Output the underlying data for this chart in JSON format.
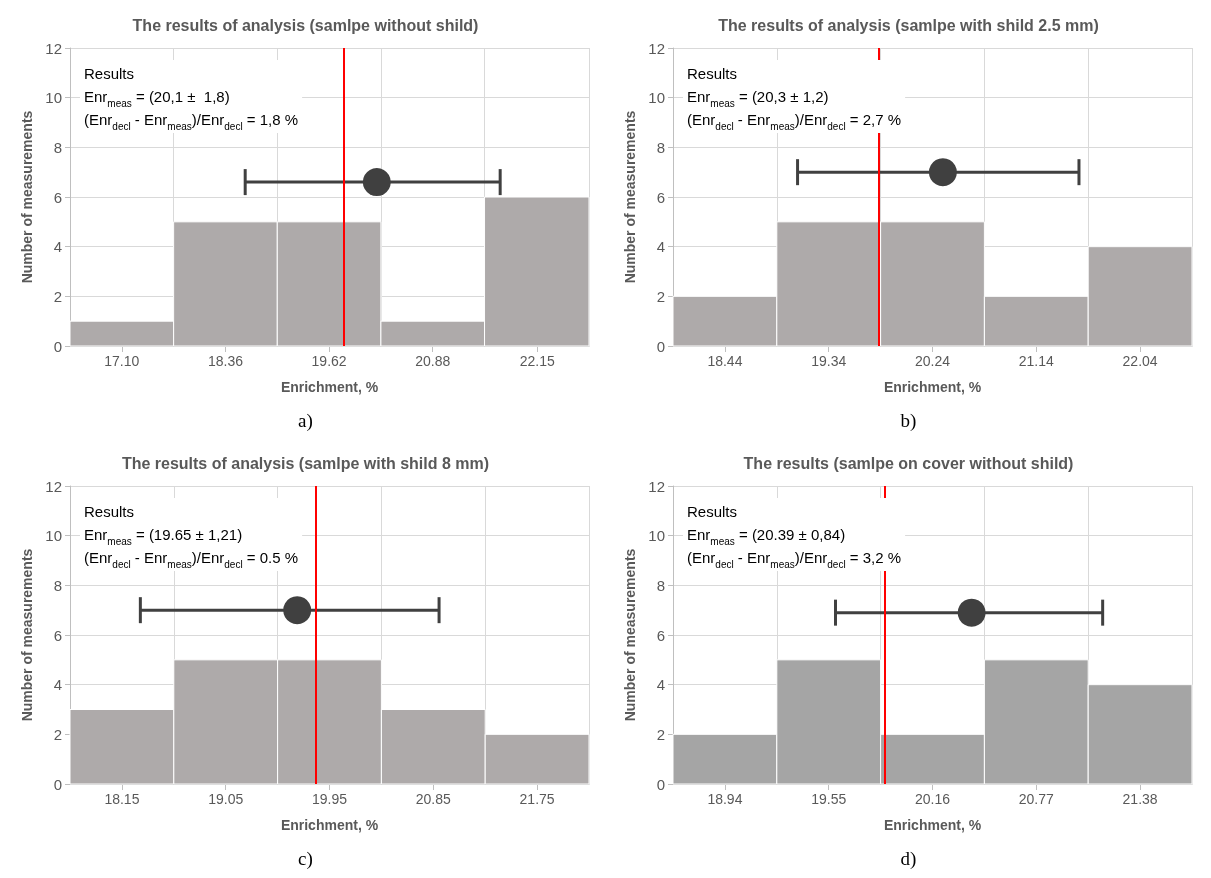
{
  "chart_data": [
    {
      "type": "histogram",
      "title": "The results of analysis (samlpe without shild)",
      "xlabel": "Enrichment, %",
      "ylabel": "Number of measurements",
      "xlim": [
        16.47,
        22.78
      ],
      "xticks": [
        {
          "value": 17.1,
          "label": "17.10"
        },
        18.36,
        19.62,
        20.88,
        22.15
      ],
      "ylim": [
        0,
        12
      ],
      "yticks": [
        0,
        2,
        4,
        6,
        8,
        10,
        12
      ],
      "grid": true,
      "series": [
        {
          "type": "histogram",
          "color": "#aeaaaa",
          "bins": [
            16.47,
            17.73,
            18.99,
            20.25,
            21.51,
            22.78
          ],
          "values": [
            1,
            5,
            5,
            1,
            6
          ]
        },
        {
          "type": "scatter",
          "color": "#404040",
          "marker": "circle",
          "x": [
            20.2
          ],
          "values": [
            6.6
          ],
          "xerrors": [
            [
              18.6,
              21.7
            ]
          ]
        }
      ],
      "ref_lines": [
        {
          "axis": "x",
          "value": 19.8,
          "color": "#ff0000"
        }
      ],
      "annotations": [
        "Results",
        "Enr$_{meas}$ = (20,1 ±  1,8)",
        "(Enr$_{decl}$ - Enr$_{meas}$)/Enr$_{decl}$ = 1,8 %",
        "a)"
      ]
    },
    {
      "type": "histogram",
      "title": "The results of analysis (samlpe with shild 2.5 mm)",
      "xlabel": "Enrichment, %",
      "ylabel": "Number of measurements",
      "xlim": [
        17.99,
        22.49
      ],
      "xticks": [
        18.44,
        19.34,
        20.24,
        21.14,
        22.04
      ],
      "ylim": [
        0,
        12
      ],
      "yticks": [
        0,
        2,
        4,
        6,
        8,
        10,
        12
      ],
      "grid": true,
      "series": [
        {
          "type": "histogram",
          "color": "#aeaaaa",
          "bins": [
            17.99,
            18.89,
            19.79,
            20.69,
            21.59,
            22.49
          ],
          "values": [
            2,
            5,
            5,
            2,
            4
          ]
        },
        {
          "type": "scatter",
          "color": "#404040",
          "marker": "circle",
          "x": [
            20.33
          ],
          "values": [
            7.0
          ],
          "xerrors": [
            [
              19.07,
              21.51
            ]
          ]
        }
      ],
      "ref_lines": [
        {
          "axis": "x",
          "value": 19.77,
          "color": "#ff0000"
        }
      ],
      "annotations": [
        "Results",
        "Enr$_{meas}$ = (20,3 ± 1,2)",
        "(Enr$_{decl}$ - Enr$_{meas}$)/Enr$_{decl}$ = 2,7 %",
        "b)"
      ]
    },
    {
      "type": "histogram",
      "title": "The results of analysis (samlpe with shild 8 mm)",
      "xlabel": "Enrichment, %",
      "ylabel": "Number of measurements",
      "xlim": [
        17.7,
        22.2
      ],
      "xticks": [
        18.15,
        19.05,
        19.95,
        20.85,
        21.75
      ],
      "ylim": [
        0,
        12
      ],
      "yticks": [
        0,
        2,
        4,
        6,
        8,
        10,
        12
      ],
      "grid": true,
      "series": [
        {
          "type": "histogram",
          "color": "#aeaaaa",
          "bins": [
            17.7,
            18.6,
            19.5,
            20.4,
            21.3,
            22.2
          ],
          "values": [
            3,
            5,
            5,
            3,
            2
          ]
        },
        {
          "type": "scatter",
          "color": "#404040",
          "marker": "circle",
          "x": [
            19.67
          ],
          "values": [
            7.0
          ],
          "xerrors": [
            [
              18.31,
              20.9
            ]
          ]
        }
      ],
      "ref_lines": [
        {
          "axis": "x",
          "value": 19.83,
          "color": "#ff0000"
        }
      ],
      "annotations": [
        "Results",
        "Enr$_{meas}$ = (19.65 ± 1,21)",
        "(Enr$_{decl}$ - Enr$_{meas}$)/Enr$_{decl}$ = 0.5 %",
        "c)"
      ]
    },
    {
      "type": "histogram",
      "title": "The results (samlpe on cover without shild)",
      "xlabel": "Enrichment, %",
      "ylabel": "Number of measurements",
      "xlim": [
        18.635,
        21.685
      ],
      "xticks": [
        18.94,
        19.55,
        20.16,
        20.77,
        21.38
      ],
      "ylim": [
        0,
        12
      ],
      "yticks": [
        0,
        2,
        4,
        6,
        8,
        10,
        12
      ],
      "grid": true,
      "series": [
        {
          "type": "histogram",
          "color": "#a5a5a5",
          "bins": [
            18.635,
            19.245,
            19.855,
            20.465,
            21.075,
            21.685
          ],
          "values": [
            2,
            5,
            2,
            5,
            4
          ]
        },
        {
          "type": "scatter",
          "color": "#404040",
          "marker": "circle",
          "x": [
            20.39
          ],
          "values": [
            6.9
          ],
          "xerrors": [
            [
              19.59,
              21.16
            ]
          ]
        }
      ],
      "ref_lines": [
        {
          "axis": "x",
          "value": 19.88,
          "color": "#ff0000"
        }
      ],
      "annotations": [
        "Results",
        "Enr$_{meas}$ = (20.39 ± 0,84)",
        "(Enr$_{decl}$ - Enr$_{meas}$)/Enr$_{decl}$ = 3,2 %",
        "d)"
      ]
    }
  ]
}
